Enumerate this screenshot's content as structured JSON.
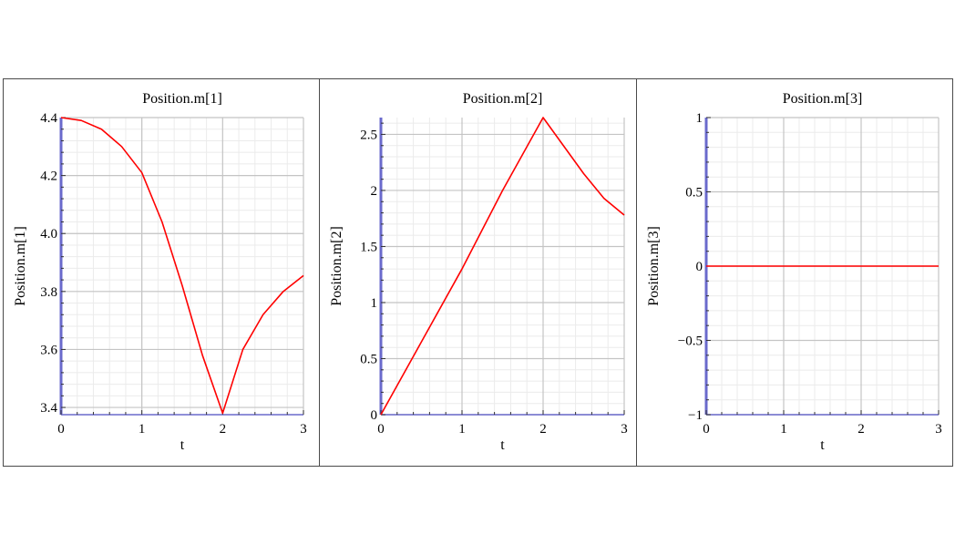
{
  "chart_data": [
    {
      "type": "line",
      "title": "Position.m[1]",
      "xlabel": "t",
      "ylabel": "Position.m[1]",
      "xlim": [
        0,
        3
      ],
      "ylim": [
        3.375,
        4.4
      ],
      "xticks": [
        0,
        1,
        2,
        3
      ],
      "xtick_labels": [
        "0",
        "1",
        "2",
        "3"
      ],
      "yticks": [
        3.4,
        3.6,
        3.8,
        4.0,
        4.2,
        4.4
      ],
      "ytick_labels": [
        "3.4",
        "3.6",
        "3.8",
        "4.0",
        "4.2",
        "4.4"
      ],
      "grid": true,
      "series": [
        {
          "color": "#ff0000",
          "x": [
            0,
            0.25,
            0.5,
            0.75,
            1.0,
            1.25,
            1.5,
            1.75,
            2.0,
            2.25,
            2.5,
            2.75,
            3.0
          ],
          "y": [
            4.4,
            4.39,
            4.36,
            4.3,
            4.21,
            4.04,
            3.82,
            3.58,
            3.38,
            3.6,
            3.72,
            3.8,
            3.855
          ]
        }
      ]
    },
    {
      "type": "line",
      "title": "Position.m[2]",
      "xlabel": "t",
      "ylabel": "Position.m[2]",
      "xlim": [
        0,
        3
      ],
      "ylim": [
        0,
        2.65
      ],
      "xticks": [
        0,
        1,
        2,
        3
      ],
      "xtick_labels": [
        "0",
        "1",
        "2",
        "3"
      ],
      "yticks": [
        0,
        0.5,
        1,
        1.5,
        2,
        2.5
      ],
      "ytick_labels": [
        "0",
        "0.5",
        "1",
        "1.5",
        "2",
        "2.5"
      ],
      "grid": true,
      "series": [
        {
          "color": "#ff0000",
          "x": [
            0,
            0.5,
            1.0,
            1.5,
            2.0,
            2.25,
            2.5,
            2.75,
            3.0
          ],
          "y": [
            0,
            0.65,
            1.3,
            2.0,
            2.65,
            2.4,
            2.15,
            1.93,
            1.78
          ]
        }
      ]
    },
    {
      "type": "line",
      "title": "Position.m[3]",
      "xlabel": "t",
      "ylabel": "Position.m[3]",
      "xlim": [
        0,
        3
      ],
      "ylim": [
        -1,
        1
      ],
      "xticks": [
        0,
        1,
        2,
        3
      ],
      "xtick_labels": [
        "0",
        "1",
        "2",
        "3"
      ],
      "yticks": [
        -1,
        -0.5,
        0,
        0.5,
        1
      ],
      "ytick_labels": [
        "−1",
        "−0.5",
        "0",
        "0.5",
        "1"
      ],
      "grid": true,
      "series": [
        {
          "color": "#ff0000",
          "x": [
            0,
            3
          ],
          "y": [
            0,
            0
          ]
        }
      ]
    }
  ]
}
